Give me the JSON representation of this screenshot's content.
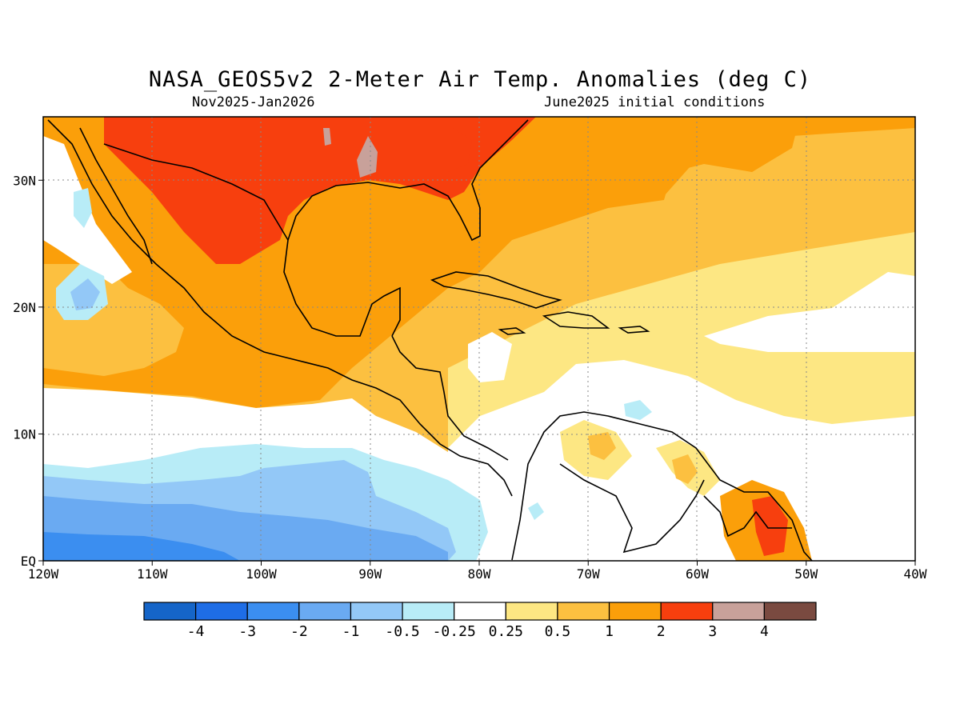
{
  "header": {
    "title": "NASA_GEOS5v2 2-Meter Air Temp. Anomalies (deg C)",
    "period": "Nov2025-Jan2026",
    "init": "June2025 initial conditions"
  },
  "map": {
    "lon_range": [
      -120,
      -40
    ],
    "lat_range": [
      0,
      35
    ],
    "lon_ticks": [
      {
        "v": -120,
        "label": "120W"
      },
      {
        "v": -110,
        "label": "110W"
      },
      {
        "v": -100,
        "label": "100W"
      },
      {
        "v": -90,
        "label": "90W"
      },
      {
        "v": -80,
        "label": "80W"
      },
      {
        "v": -70,
        "label": "70W"
      },
      {
        "v": -60,
        "label": "60W"
      },
      {
        "v": -50,
        "label": "50W"
      },
      {
        "v": -40,
        "label": "40W"
      }
    ],
    "lat_ticks": [
      {
        "v": 0,
        "label": "EQ"
      },
      {
        "v": 10,
        "label": "10N"
      },
      {
        "v": 20,
        "label": "20N"
      },
      {
        "v": 30,
        "label": "30N"
      }
    ],
    "grid": "dotted"
  },
  "colorbar": {
    "colors": [
      "#1565c8",
      "#1e6de6",
      "#3b8ef0",
      "#6aaaf2",
      "#93c8f7",
      "#b8ecf7",
      "#ffffff",
      "#fde783",
      "#fcc040",
      "#fb9f0a",
      "#f73f0e",
      "#c8a19a",
      "#7a4a40"
    ],
    "labels": [
      "-4",
      "-3",
      "-2",
      "-1",
      "-0.5",
      "-0.25",
      "0.25",
      "0.5",
      "1",
      "2",
      "3",
      "4"
    ]
  }
}
